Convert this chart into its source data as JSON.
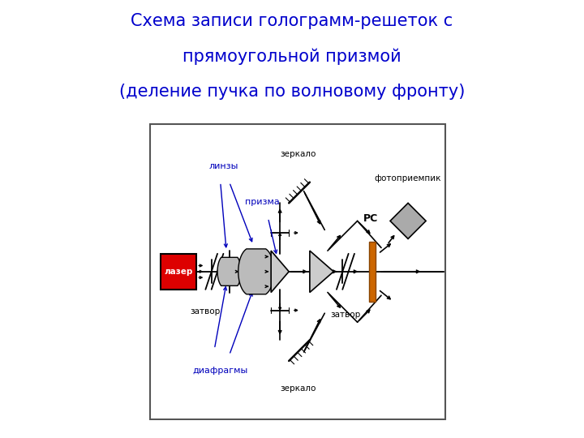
{
  "title_line1": "Схема записи голограмм-решеток с",
  "title_line2": "прямоугольной призмой",
  "title_line3": "(деление пучка по волновому фронту)",
  "title_color": "#0000cc",
  "title_fontsize": 15,
  "bg_color": "#ffffff",
  "line_color": "#000000",
  "blue_color": "#0000bb",
  "laser_fill": "#dd0000",
  "lens_fill": "#bbbbbb",
  "prism_fill": "#cccccc",
  "detector_fill": "#aaaaaa",
  "rs_fill": "#cc6600"
}
